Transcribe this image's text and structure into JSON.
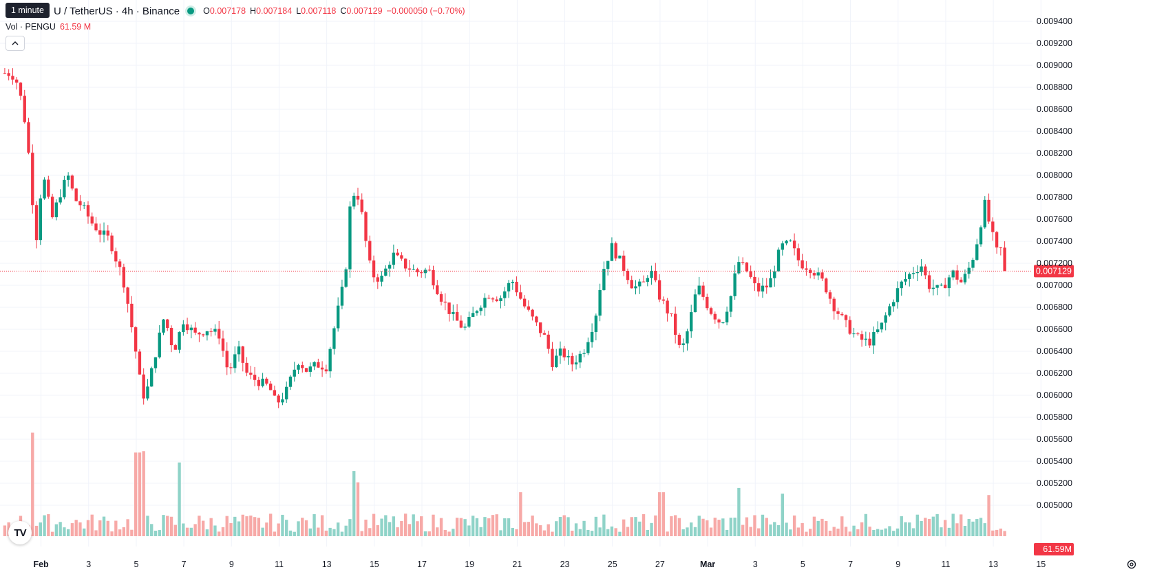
{
  "legend": {
    "tooltip": "1 minute",
    "symbol_partial": "U / TetherUS · 4h · Binance",
    "ohlc": [
      {
        "k": "O",
        "v": "0.007178"
      },
      {
        "k": "H",
        "v": "0.007184"
      },
      {
        "k": "L",
        "v": "0.007118"
      },
      {
        "k": "C",
        "v": "0.007129"
      }
    ],
    "change": "−0.000050 (−0.70%)",
    "vol_label": "Vol · PENGU",
    "vol_value": "61.59 M",
    "collapse_icon": "chevron-up-icon",
    "logo_icon": "tradingview-logo",
    "logo_text": "TV",
    "settings_icon": "gear-icon"
  },
  "colors": {
    "up": "#089981",
    "down": "#f23645",
    "vol_up": "#8fd3c8",
    "vol_down": "#f7a9a7",
    "grid": "#f0f3fa",
    "text": "#131722",
    "price_line": "#f23645"
  },
  "chart_data": {
    "type": "candlestick",
    "symbol": "PENGU / TetherUS",
    "interval": "4h",
    "exchange": "Binance",
    "y_axis_ticks": [
      "0.009400",
      "0.009200",
      "0.009000",
      "0.008800",
      "0.008600",
      "0.008400",
      "0.008200",
      "0.008000",
      "0.007800",
      "0.007600",
      "0.007400",
      "0.007200",
      "0.007000",
      "0.006800",
      "0.006600",
      "0.006400",
      "0.006200",
      "0.006000",
      "0.005800",
      "0.005600",
      "0.005400",
      "0.005200",
      "0.005000"
    ],
    "ylim": [
      0.00499,
      0.00947
    ],
    "x_axis_labels": [
      {
        "label": "Feb",
        "day": 1
      },
      {
        "label": "3",
        "day": 3
      },
      {
        "label": "5",
        "day": 5
      },
      {
        "label": "7",
        "day": 7
      },
      {
        "label": "9",
        "day": 9
      },
      {
        "label": "11",
        "day": 11
      },
      {
        "label": "13",
        "day": 13
      },
      {
        "label": "15",
        "day": 15
      },
      {
        "label": "17",
        "day": 17
      },
      {
        "label": "19",
        "day": 19
      },
      {
        "label": "21",
        "day": 21
      },
      {
        "label": "23",
        "day": 23
      },
      {
        "label": "25",
        "day": 25
      },
      {
        "label": "27",
        "day": 27
      },
      {
        "label": "Mar",
        "day": 29
      },
      {
        "label": "3",
        "day": 31
      },
      {
        "label": "5",
        "day": 33
      },
      {
        "label": "7",
        "day": 35
      },
      {
        "label": "9",
        "day": 37
      },
      {
        "label": "11",
        "day": 39
      },
      {
        "label": "13",
        "day": 41
      },
      {
        "label": "15",
        "day": 43
      }
    ],
    "last_price": "0.007129",
    "last_price_value": 0.007129,
    "last_volume": "61.59M",
    "volume_max": 5000,
    "close_path": [
      {
        "day": 0.3,
        "p": 0.00893
      },
      {
        "day": 0.5,
        "p": 0.00892
      },
      {
        "day": 0.7,
        "p": 0.00885
      },
      {
        "day": 0.9,
        "p": 0.00868
      },
      {
        "day": 1.1,
        "p": 0.00842
      },
      {
        "day": 1.3,
        "p": 0.00798
      },
      {
        "day": 1.5,
        "p": 0.00735
      },
      {
        "day": 1.65,
        "p": 0.00778
      },
      {
        "day": 1.9,
        "p": 0.00797
      },
      {
        "day": 2.15,
        "p": 0.00758
      },
      {
        "day": 2.5,
        "p": 0.00782
      },
      {
        "day": 2.85,
        "p": 0.008
      },
      {
        "day": 3.15,
        "p": 0.00778
      },
      {
        "day": 3.45,
        "p": 0.00772
      },
      {
        "day": 3.85,
        "p": 0.00757
      },
      {
        "day": 4.2,
        "p": 0.00748
      },
      {
        "day": 4.6,
        "p": 0.00742
      },
      {
        "day": 4.9,
        "p": 0.00722
      },
      {
        "day": 5.15,
        "p": 0.00708
      },
      {
        "day": 5.4,
        "p": 0.0068
      },
      {
        "day": 5.7,
        "p": 0.0064
      },
      {
        "day": 5.95,
        "p": 0.00603
      },
      {
        "day": 6.1,
        "p": 0.00598
      },
      {
        "day": 6.3,
        "p": 0.00615
      },
      {
        "day": 6.6,
        "p": 0.00645
      },
      {
        "day": 6.9,
        "p": 0.00672
      },
      {
        "day": 7.3,
        "p": 0.0064
      },
      {
        "day": 7.7,
        "p": 0.00668
      },
      {
        "day": 8.2,
        "p": 0.00655
      },
      {
        "day": 8.7,
        "p": 0.0066
      },
      {
        "day": 9.2,
        "p": 0.00655
      },
      {
        "day": 9.6,
        "p": 0.0062
      },
      {
        "day": 10.0,
        "p": 0.00642
      },
      {
        "day": 10.4,
        "p": 0.00618
      },
      {
        "day": 10.9,
        "p": 0.00612
      },
      {
        "day": 11.3,
        "p": 0.00608
      },
      {
        "day": 11.6,
        "p": 0.00592
      },
      {
        "day": 12.0,
        "p": 0.00602
      },
      {
        "day": 12.5,
        "p": 0.00632
      },
      {
        "day": 12.9,
        "p": 0.00622
      },
      {
        "day": 13.3,
        "p": 0.00628
      },
      {
        "day": 13.7,
        "p": 0.00626
      },
      {
        "day": 14.1,
        "p": 0.00668
      },
      {
        "day": 14.5,
        "p": 0.00708
      },
      {
        "day": 14.75,
        "p": 0.00785
      },
      {
        "day": 15.1,
        "p": 0.0078
      },
      {
        "day": 15.3,
        "p": 0.00748
      },
      {
        "day": 15.6,
        "p": 0.0071
      },
      {
        "day": 16.0,
        "p": 0.00705
      },
      {
        "day": 16.5,
        "p": 0.00728
      },
      {
        "day": 17.0,
        "p": 0.00718
      },
      {
        "day": 17.5,
        "p": 0.00712
      },
      {
        "day": 18.0,
        "p": 0.00714
      },
      {
        "day": 18.5,
        "p": 0.0069
      },
      {
        "day": 19.0,
        "p": 0.00672
      },
      {
        "day": 19.5,
        "p": 0.0066
      },
      {
        "day": 20.0,
        "p": 0.00678
      },
      {
        "day": 20.5,
        "p": 0.00692
      },
      {
        "day": 21.0,
        "p": 0.00688
      },
      {
        "day": 21.5,
        "p": 0.00705
      },
      {
        "day": 22.0,
        "p": 0.00682
      },
      {
        "day": 22.5,
        "p": 0.00665
      },
      {
        "day": 22.9,
        "p": 0.00652
      },
      {
        "day": 23.2,
        "p": 0.0063
      },
      {
        "day": 23.6,
        "p": 0.0064
      },
      {
        "day": 24.0,
        "p": 0.00628
      },
      {
        "day": 24.5,
        "p": 0.0064
      },
      {
        "day": 25.0,
        "p": 0.0067
      },
      {
        "day": 25.3,
        "p": 0.00712
      },
      {
        "day": 25.7,
        "p": 0.00735
      },
      {
        "day": 26.1,
        "p": 0.0072
      },
      {
        "day": 26.6,
        "p": 0.00698
      },
      {
        "day": 27.0,
        "p": 0.007
      },
      {
        "day": 27.3,
        "p": 0.00715
      },
      {
        "day": 27.7,
        "p": 0.0069
      },
      {
        "day": 28.2,
        "p": 0.0067
      },
      {
        "day": 28.6,
        "p": 0.00638
      },
      {
        "day": 28.9,
        "p": 0.0066
      },
      {
        "day": 29.3,
        "p": 0.007
      },
      {
        "day": 29.8,
        "p": 0.00678
      },
      {
        "day": 30.3,
        "p": 0.00665
      },
      {
        "day": 30.7,
        "p": 0.0069
      },
      {
        "day": 31.0,
        "p": 0.00722
      },
      {
        "day": 31.4,
        "p": 0.00712
      },
      {
        "day": 31.8,
        "p": 0.00695
      },
      {
        "day": 32.3,
        "p": 0.007
      },
      {
        "day": 32.8,
        "p": 0.00735
      },
      {
        "day": 33.2,
        "p": 0.00738
      },
      {
        "day": 33.6,
        "p": 0.0072
      },
      {
        "day": 34.1,
        "p": 0.00715
      },
      {
        "day": 34.6,
        "p": 0.00702
      },
      {
        "day": 35.0,
        "p": 0.00682
      },
      {
        "day": 35.5,
        "p": 0.00665
      },
      {
        "day": 36.0,
        "p": 0.00652
      },
      {
        "day": 36.5,
        "p": 0.00648
      },
      {
        "day": 37.0,
        "p": 0.00662
      },
      {
        "day": 37.4,
        "p": 0.00682
      },
      {
        "day": 37.8,
        "p": 0.007
      },
      {
        "day": 38.3,
        "p": 0.00712
      },
      {
        "day": 38.7,
        "p": 0.00718
      },
      {
        "day": 39.0,
        "p": 0.007
      },
      {
        "day": 39.5,
        "p": 0.00695
      },
      {
        "day": 40.0,
        "p": 0.00712
      },
      {
        "day": 40.4,
        "p": 0.00702
      },
      {
        "day": 40.8,
        "p": 0.0072
      },
      {
        "day": 41.1,
        "p": 0.00745
      },
      {
        "day": 41.35,
        "p": 0.00775
      },
      {
        "day": 41.6,
        "p": 0.00752
      },
      {
        "day": 41.9,
        "p": 0.00728
      },
      {
        "day": 42.1,
        "p": 0.00735
      },
      {
        "day": 42.35,
        "p": 0.00713
      }
    ],
    "volume_spikes": [
      {
        "day": 1.4,
        "v": 5730
      },
      {
        "day": 5.8,
        "v": 5590
      },
      {
        "day": 6.0,
        "v": 5600
      },
      {
        "day": 7.6,
        "v": 5520
      },
      {
        "day": 14.8,
        "v": 5460
      },
      {
        "day": 15.0,
        "v": 5380
      },
      {
        "day": 21.9,
        "v": 5310
      },
      {
        "day": 27.8,
        "v": 5310
      },
      {
        "day": 31.0,
        "v": 5340
      },
      {
        "day": 32.9,
        "v": 5300
      },
      {
        "day": 41.5,
        "v": 5290
      }
    ],
    "x_start_day": 0,
    "x_end_day": 42.5
  }
}
